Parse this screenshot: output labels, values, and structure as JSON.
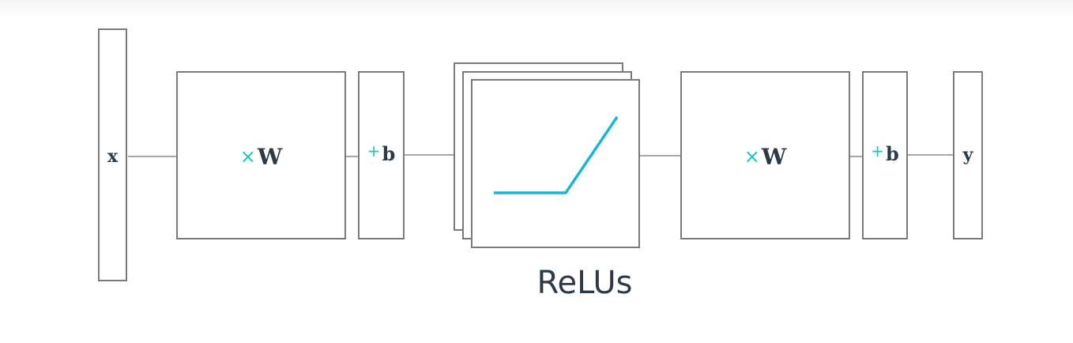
{
  "input": {
    "label": "x"
  },
  "layer1": {
    "weight": {
      "op_symbol": "×",
      "label": "W"
    },
    "bias": {
      "op_symbol": "+",
      "label": "b"
    }
  },
  "activation": {
    "caption": "ReLUs"
  },
  "layer2": {
    "weight": {
      "op_symbol": "×",
      "label": "W"
    },
    "bias": {
      "op_symbol": "+",
      "label": "b"
    }
  },
  "output": {
    "label": "y"
  },
  "colors": {
    "box_border": "#7a7a7a",
    "connector": "#a8a8a8",
    "text": "#2d3a48",
    "operator": "#1fc4b4",
    "relu_curve": "#1ab3dc"
  }
}
